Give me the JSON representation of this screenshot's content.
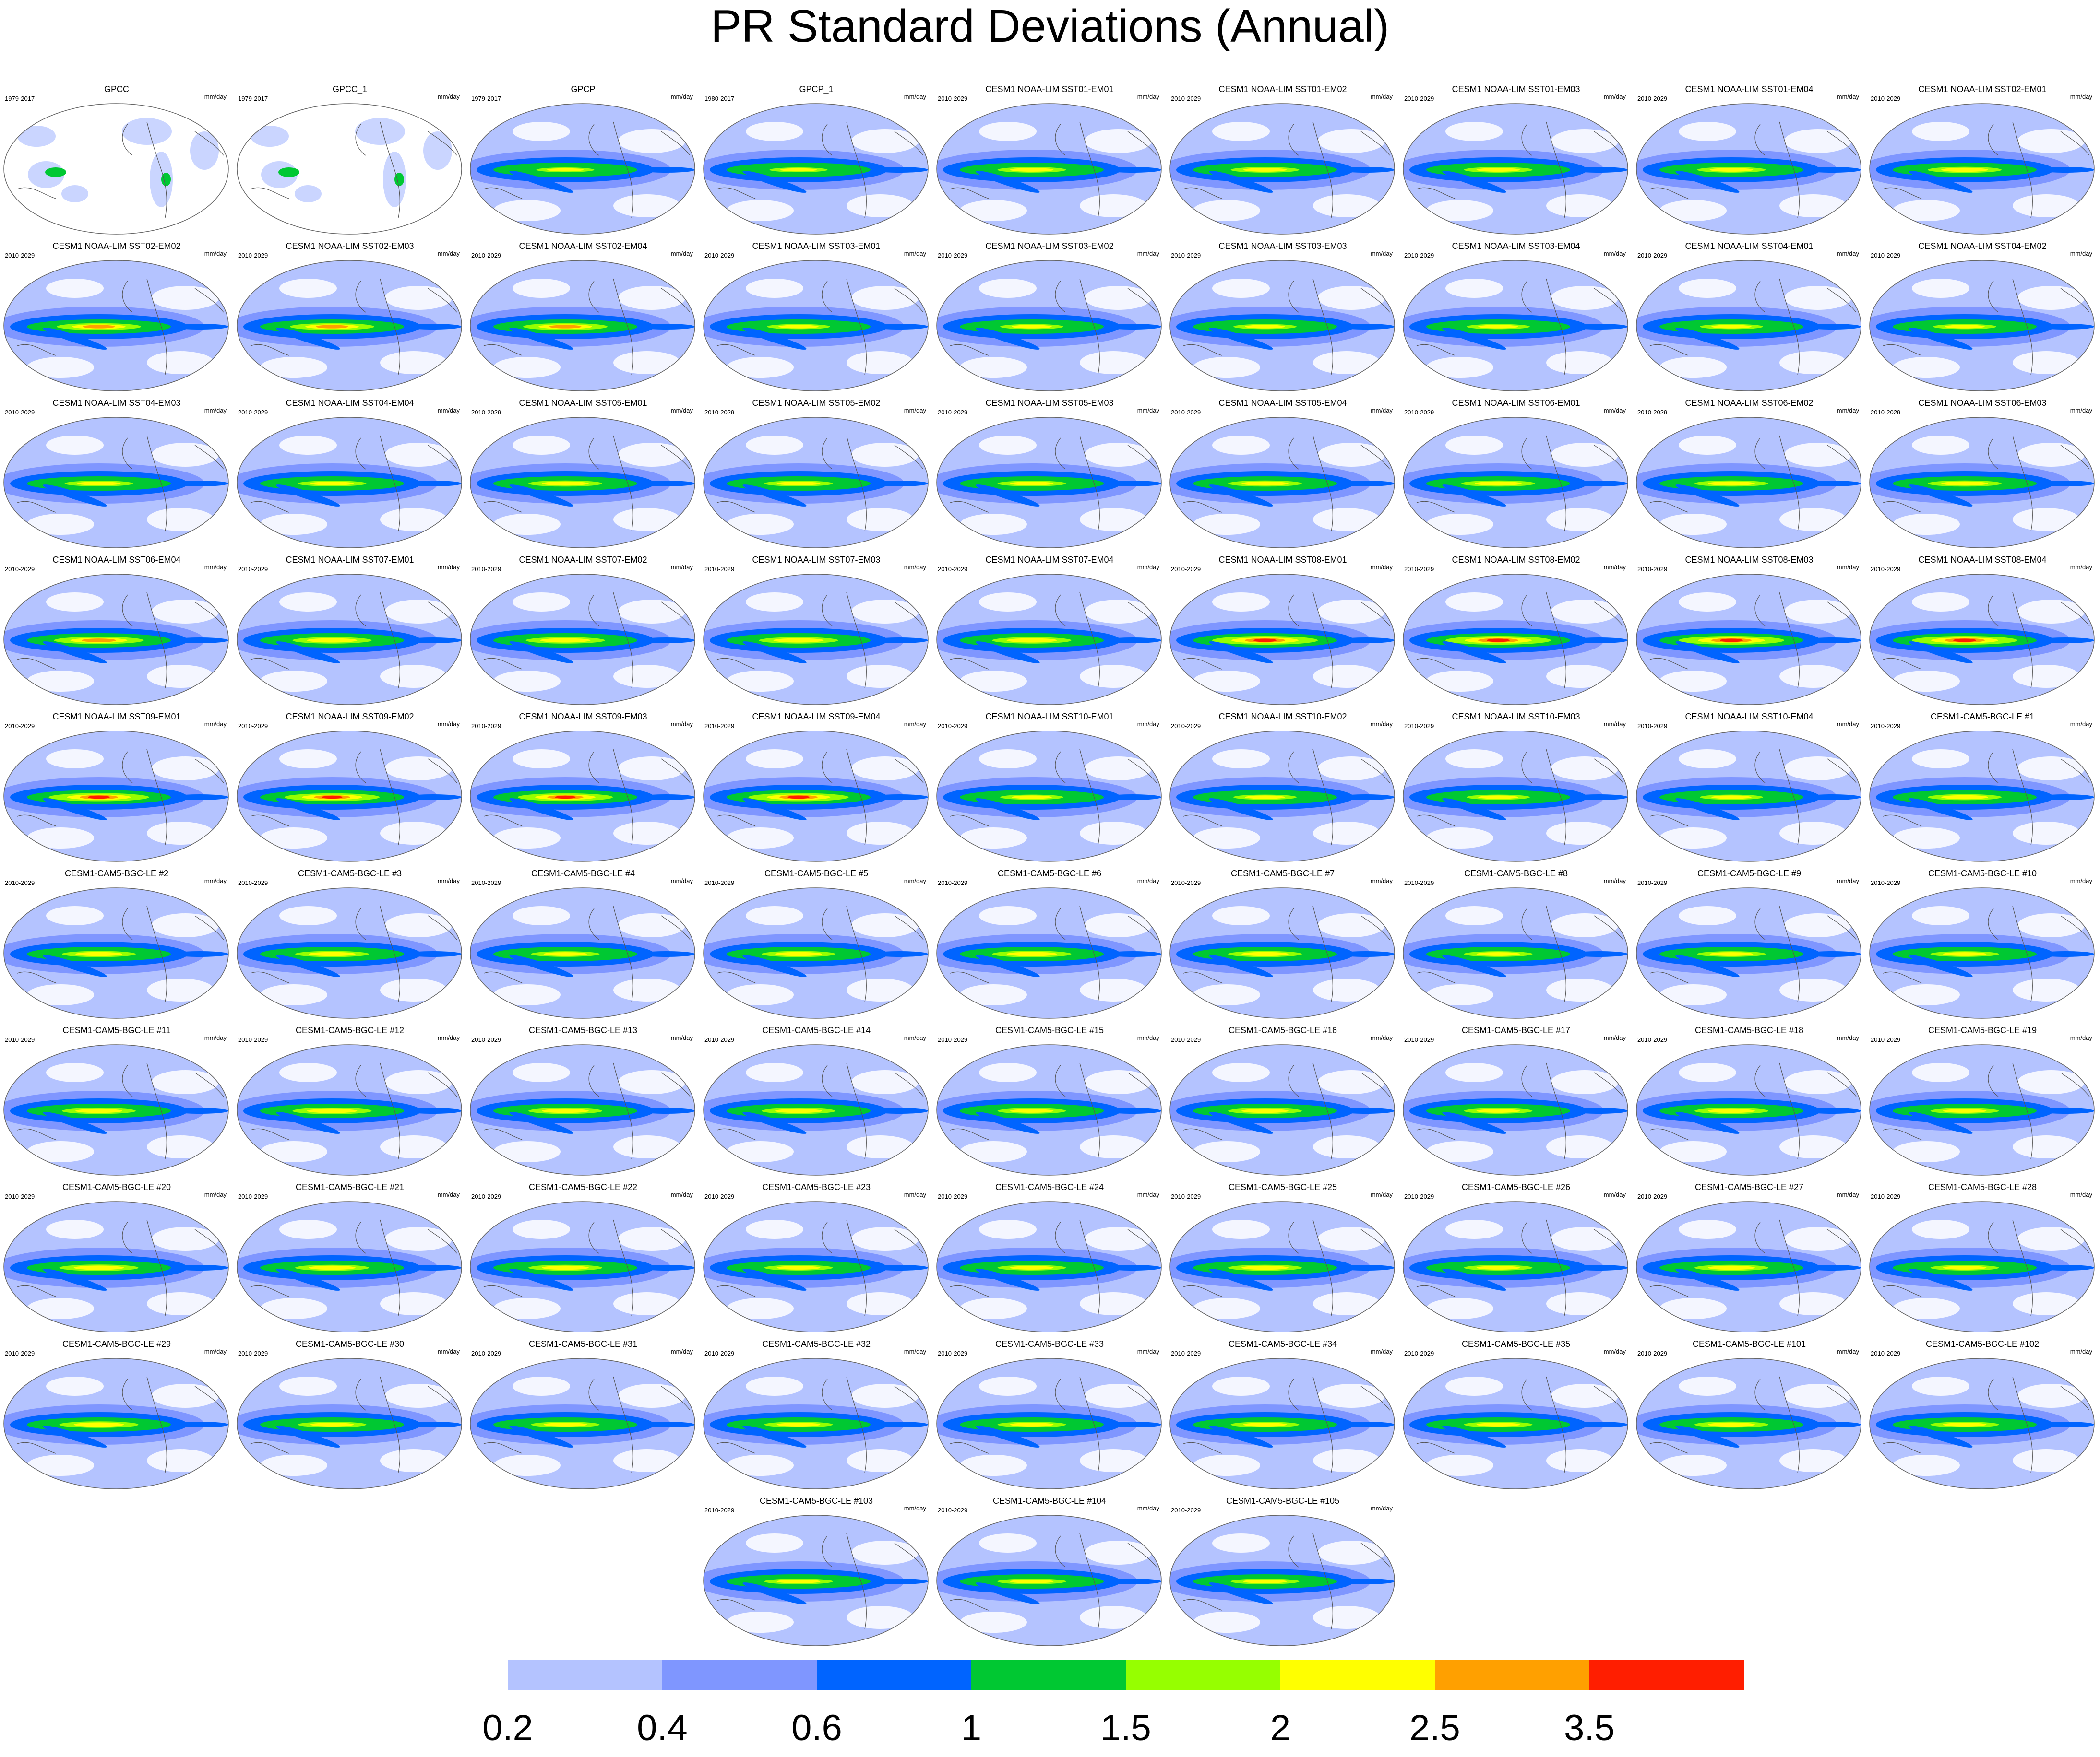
{
  "figure": {
    "title": "PR Standard Deviations (Annual)",
    "units": "mm/day",
    "projection": "global map, Pacific-centered",
    "panels": [
      {
        "title": "GPCC",
        "period": "1979-2017",
        "type": "obs_land",
        "intensity": 0.3
      },
      {
        "title": "GPCC_1",
        "period": "1979-2017",
        "type": "obs_land",
        "intensity": 0.3
      },
      {
        "title": "GPCP",
        "period": "1979-2017",
        "type": "obs",
        "intensity": 0.55
      },
      {
        "title": "GPCP_1",
        "period": "1980-2017",
        "type": "obs",
        "intensity": 0.55
      },
      {
        "title": "CESM1 NOAA-LIM SST01-EM01",
        "period": "2010-2029",
        "type": "model",
        "intensity": 0.65
      },
      {
        "title": "CESM1 NOAA-LIM SST01-EM02",
        "period": "2010-2029",
        "type": "model",
        "intensity": 0.65
      },
      {
        "title": "CESM1 NOAA-LIM SST01-EM03",
        "period": "2010-2029",
        "type": "model",
        "intensity": 0.65
      },
      {
        "title": "CESM1 NOAA-LIM SST01-EM04",
        "period": "2010-2029",
        "type": "model",
        "intensity": 0.65
      },
      {
        "title": "CESM1 NOAA-LIM SST02-EM01",
        "period": "2010-2029",
        "type": "model",
        "intensity": 0.7
      },
      {
        "title": "CESM1 NOAA-LIM SST02-EM02",
        "period": "2010-2029",
        "type": "model",
        "intensity": 0.8
      },
      {
        "title": "CESM1 NOAA-LIM SST02-EM03",
        "period": "2010-2029",
        "type": "model",
        "intensity": 0.8
      },
      {
        "title": "CESM1 NOAA-LIM SST02-EM04",
        "period": "2010-2029",
        "type": "model",
        "intensity": 0.8
      },
      {
        "title": "CESM1 NOAA-LIM SST03-EM01",
        "period": "2010-2029",
        "type": "model",
        "intensity": 0.6
      },
      {
        "title": "CESM1 NOAA-LIM SST03-EM02",
        "period": "2010-2029",
        "type": "model",
        "intensity": 0.6
      },
      {
        "title": "CESM1 NOAA-LIM SST03-EM03",
        "period": "2010-2029",
        "type": "model",
        "intensity": 0.6
      },
      {
        "title": "CESM1 NOAA-LIM SST03-EM04",
        "period": "2010-2029",
        "type": "model",
        "intensity": 0.6
      },
      {
        "title": "CESM1 NOAA-LIM SST04-EM01",
        "period": "2010-2029",
        "type": "model",
        "intensity": 0.6
      },
      {
        "title": "CESM1 NOAA-LIM SST04-EM02",
        "period": "2010-2029",
        "type": "model",
        "intensity": 0.6
      },
      {
        "title": "CESM1 NOAA-LIM SST04-EM03",
        "period": "2010-2029",
        "type": "model",
        "intensity": 0.65
      },
      {
        "title": "CESM1 NOAA-LIM SST04-EM04",
        "period": "2010-2029",
        "type": "model",
        "intensity": 0.65
      },
      {
        "title": "CESM1 NOAA-LIM SST05-EM01",
        "period": "2010-2029",
        "type": "model",
        "intensity": 0.7
      },
      {
        "title": "CESM1 NOAA-LIM SST05-EM02",
        "period": "2010-2029",
        "type": "model",
        "intensity": 0.65
      },
      {
        "title": "CESM1 NOAA-LIM SST05-EM03",
        "period": "2010-2029",
        "type": "model",
        "intensity": 0.65
      },
      {
        "title": "CESM1 NOAA-LIM SST05-EM04",
        "period": "2010-2029",
        "type": "model",
        "intensity": 0.7
      },
      {
        "title": "CESM1 NOAA-LIM SST06-EM01",
        "period": "2010-2029",
        "type": "model",
        "intensity": 0.7
      },
      {
        "title": "CESM1 NOAA-LIM SST06-EM02",
        "period": "2010-2029",
        "type": "model",
        "intensity": 0.7
      },
      {
        "title": "CESM1 NOAA-LIM SST06-EM03",
        "period": "2010-2029",
        "type": "model",
        "intensity": 0.7
      },
      {
        "title": "CESM1 NOAA-LIM SST06-EM04",
        "period": "2010-2029",
        "type": "model",
        "intensity": 0.85
      },
      {
        "title": "CESM1 NOAA-LIM SST07-EM01",
        "period": "2010-2029",
        "type": "model",
        "intensity": 0.75
      },
      {
        "title": "CESM1 NOAA-LIM SST07-EM02",
        "period": "2010-2029",
        "type": "model",
        "intensity": 0.75
      },
      {
        "title": "CESM1 NOAA-LIM SST07-EM03",
        "period": "2010-2029",
        "type": "model",
        "intensity": 0.75
      },
      {
        "title": "CESM1 NOAA-LIM SST07-EM04",
        "period": "2010-2029",
        "type": "model",
        "intensity": 0.75
      },
      {
        "title": "CESM1 NOAA-LIM SST08-EM01",
        "period": "2010-2029",
        "type": "model",
        "intensity": 1.0
      },
      {
        "title": "CESM1 NOAA-LIM SST08-EM02",
        "period": "2010-2029",
        "type": "model",
        "intensity": 1.0
      },
      {
        "title": "CESM1 NOAA-LIM SST08-EM03",
        "period": "2010-2029",
        "type": "model",
        "intensity": 1.0
      },
      {
        "title": "CESM1 NOAA-LIM SST08-EM04",
        "period": "2010-2029",
        "type": "model",
        "intensity": 1.0
      },
      {
        "title": "CESM1 NOAA-LIM SST09-EM01",
        "period": "2010-2029",
        "type": "model",
        "intensity": 0.95
      },
      {
        "title": "CESM1 NOAA-LIM SST09-EM02",
        "period": "2010-2029",
        "type": "model",
        "intensity": 0.9
      },
      {
        "title": "CESM1 NOAA-LIM SST09-EM03",
        "period": "2010-2029",
        "type": "model",
        "intensity": 0.9
      },
      {
        "title": "CESM1 NOAA-LIM SST09-EM04",
        "period": "2010-2029",
        "type": "model",
        "intensity": 0.95
      },
      {
        "title": "CESM1 NOAA-LIM SST10-EM01",
        "period": "2010-2029",
        "type": "model",
        "intensity": 0.6
      },
      {
        "title": "CESM1 NOAA-LIM SST10-EM02",
        "period": "2010-2029",
        "type": "model",
        "intensity": 0.6
      },
      {
        "title": "CESM1 NOAA-LIM SST10-EM03",
        "period": "2010-2029",
        "type": "model",
        "intensity": 0.6
      },
      {
        "title": "CESM1 NOAA-LIM SST10-EM04",
        "period": "2010-2029",
        "type": "model",
        "intensity": 0.6
      },
      {
        "title": "CESM1-CAM5-BGC-LE #1",
        "period": "2010-2029",
        "type": "model",
        "intensity": 0.7
      },
      {
        "title": "CESM1-CAM5-BGC-LE #2",
        "period": "2010-2029",
        "type": "model",
        "intensity": 0.7
      },
      {
        "title": "CESM1-CAM5-BGC-LE #3",
        "period": "2010-2029",
        "type": "model",
        "intensity": 0.7
      },
      {
        "title": "CESM1-CAM5-BGC-LE #4",
        "period": "2010-2029",
        "type": "model",
        "intensity": 0.65
      },
      {
        "title": "CESM1-CAM5-BGC-LE #5",
        "period": "2010-2029",
        "type": "model",
        "intensity": 0.7
      },
      {
        "title": "CESM1-CAM5-BGC-LE #6",
        "period": "2010-2029",
        "type": "model",
        "intensity": 0.75
      },
      {
        "title": "CESM1-CAM5-BGC-LE #7",
        "period": "2010-2029",
        "type": "model",
        "intensity": 0.7
      },
      {
        "title": "CESM1-CAM5-BGC-LE #8",
        "period": "2010-2029",
        "type": "model",
        "intensity": 0.65
      },
      {
        "title": "CESM1-CAM5-BGC-LE #9",
        "period": "2010-2029",
        "type": "model",
        "intensity": 0.65
      },
      {
        "title": "CESM1-CAM5-BGC-LE #10",
        "period": "2010-2029",
        "type": "model",
        "intensity": 0.65
      },
      {
        "title": "CESM1-CAM5-BGC-LE #11",
        "period": "2010-2029",
        "type": "model",
        "intensity": 0.7
      },
      {
        "title": "CESM1-CAM5-BGC-LE #12",
        "period": "2010-2029",
        "type": "model",
        "intensity": 0.75
      },
      {
        "title": "CESM1-CAM5-BGC-LE #13",
        "period": "2010-2029",
        "type": "model",
        "intensity": 0.7
      },
      {
        "title": "CESM1-CAM5-BGC-LE #14",
        "period": "2010-2029",
        "type": "model",
        "intensity": 0.7
      },
      {
        "title": "CESM1-CAM5-BGC-LE #15",
        "period": "2010-2029",
        "type": "model",
        "intensity": 0.65
      },
      {
        "title": "CESM1-CAM5-BGC-LE #16",
        "period": "2010-2029",
        "type": "model",
        "intensity": 0.7
      },
      {
        "title": "CESM1-CAM5-BGC-LE #17",
        "period": "2010-2029",
        "type": "model",
        "intensity": 0.65
      },
      {
        "title": "CESM1-CAM5-BGC-LE #18",
        "period": "2010-2029",
        "type": "model",
        "intensity": 0.7
      },
      {
        "title": "CESM1-CAM5-BGC-LE #19",
        "period": "2010-2029",
        "type": "model",
        "intensity": 0.65
      },
      {
        "title": "CESM1-CAM5-BGC-LE #20",
        "period": "2010-2029",
        "type": "model",
        "intensity": 0.75
      },
      {
        "title": "CESM1-CAM5-BGC-LE #21",
        "period": "2010-2029",
        "type": "model",
        "intensity": 0.7
      },
      {
        "title": "CESM1-CAM5-BGC-LE #22",
        "period": "2010-2029",
        "type": "model",
        "intensity": 0.7
      },
      {
        "title": "CESM1-CAM5-BGC-LE #23",
        "period": "2010-2029",
        "type": "model",
        "intensity": 0.65
      },
      {
        "title": "CESM1-CAM5-BGC-LE #24",
        "period": "2010-2029",
        "type": "model",
        "intensity": 0.65
      },
      {
        "title": "CESM1-CAM5-BGC-LE #25",
        "period": "2010-2029",
        "type": "model",
        "intensity": 0.7
      },
      {
        "title": "CESM1-CAM5-BGC-LE #26",
        "period": "2010-2029",
        "type": "model",
        "intensity": 0.65
      },
      {
        "title": "CESM1-CAM5-BGC-LE #27",
        "period": "2010-2029",
        "type": "model",
        "intensity": 0.7
      },
      {
        "title": "CESM1-CAM5-BGC-LE #28",
        "period": "2010-2029",
        "type": "model",
        "intensity": 0.65
      },
      {
        "title": "CESM1-CAM5-BGC-LE #29",
        "period": "2010-2029",
        "type": "model",
        "intensity": 0.75
      },
      {
        "title": "CESM1-CAM5-BGC-LE #30",
        "period": "2010-2029",
        "type": "model",
        "intensity": 0.65
      },
      {
        "title": "CESM1-CAM5-BGC-LE #31",
        "period": "2010-2029",
        "type": "model",
        "intensity": 0.65
      },
      {
        "title": "CESM1-CAM5-BGC-LE #32",
        "period": "2010-2029",
        "type": "model",
        "intensity": 0.65
      },
      {
        "title": "CESM1-CAM5-BGC-LE #33",
        "period": "2010-2029",
        "type": "model",
        "intensity": 0.65
      },
      {
        "title": "CESM1-CAM5-BGC-LE #34",
        "period": "2010-2029",
        "type": "model",
        "intensity": 0.65
      },
      {
        "title": "CESM1-CAM5-BGC-LE #35",
        "period": "2010-2029",
        "type": "model",
        "intensity": 0.65
      },
      {
        "title": "CESM1-CAM5-BGC-LE #101",
        "period": "2010-2029",
        "type": "model",
        "intensity": 0.7
      },
      {
        "title": "CESM1-CAM5-BGC-LE #102",
        "period": "2010-2029",
        "type": "model",
        "intensity": 0.65
      },
      {
        "title": "CESM1-CAM5-BGC-LE #103",
        "period": "2010-2029",
        "type": "model",
        "intensity": 0.65
      },
      {
        "title": "CESM1-CAM5-BGC-LE #104",
        "period": "2010-2029",
        "type": "model",
        "intensity": 0.65
      },
      {
        "title": "CESM1-CAM5-BGC-LE #105",
        "period": "2010-2029",
        "type": "model",
        "intensity": 0.65
      }
    ]
  },
  "colorbar": {
    "colors": [
      "#ffffff",
      "#b4c3ff",
      "#7f96ff",
      "#0064ff",
      "#00c832",
      "#96ff00",
      "#ffff00",
      "#ffa000",
      "#ff1e00"
    ],
    "labels": [
      "0.2",
      "0.4",
      "0.6",
      "1",
      "1.5",
      "2",
      "2.5",
      "3.5"
    ]
  }
}
